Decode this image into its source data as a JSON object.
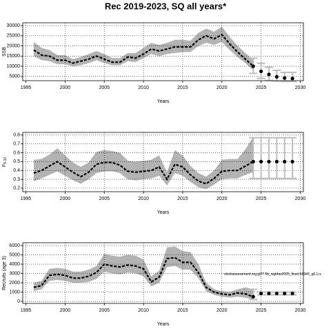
{
  "title": "Rec 2019-2023, SQ all years*",
  "chart_data": [
    {
      "type": "band-line",
      "y_label": "SSB",
      "x_label": "Years",
      "x": [
        1996,
        1997,
        1998,
        1999,
        2000,
        2001,
        2002,
        2003,
        2004,
        2005,
        2006,
        2007,
        2008,
        2009,
        2010,
        2011,
        2012,
        2013,
        2014,
        2015,
        2016,
        2017,
        2018,
        2019,
        2020,
        2021,
        2022,
        2023,
        2024
      ],
      "median": [
        18000,
        15500,
        15000,
        13000,
        13000,
        11500,
        12500,
        13500,
        15000,
        13500,
        12000,
        12000,
        14500,
        14000,
        16000,
        18500,
        17500,
        18500,
        19500,
        19500,
        19500,
        23000,
        25000,
        23500,
        25500,
        21000,
        17000,
        13500,
        10000
      ],
      "lower": [
        15000,
        13000,
        12500,
        11000,
        11000,
        10000,
        10500,
        11500,
        13000,
        11500,
        10500,
        10500,
        12500,
        12000,
        14000,
        16000,
        15000,
        16000,
        16500,
        17000,
        17000,
        20000,
        21500,
        20500,
        22000,
        18000,
        14500,
        11500,
        8000
      ],
      "upper": [
        22000,
        19000,
        18000,
        15500,
        15500,
        13500,
        14500,
        16000,
        17500,
        16000,
        14000,
        14000,
        16500,
        16500,
        19000,
        21500,
        20500,
        21500,
        23000,
        23000,
        22500,
        26500,
        28500,
        27000,
        29500,
        24500,
        20000,
        16500,
        13000
      ],
      "proj_x": [
        2024,
        2025,
        2026,
        2027,
        2028,
        2029
      ],
      "proj_values": [
        10000,
        7500,
        6000,
        4800,
        4200,
        4000
      ],
      "proj_lower": [
        6500,
        4000,
        3000,
        2700,
        2500,
        2500
      ],
      "proj_upper": [
        14000,
        11500,
        9500,
        8000,
        7000,
        7000
      ],
      "xlim": [
        1994.6,
        2030.4
      ],
      "xticks": [
        1995,
        2000,
        2005,
        2010,
        2015,
        2020,
        2025,
        2030
      ],
      "ylim": [
        2900,
        31400
      ],
      "yticks": [
        5000,
        10000,
        15000,
        20000,
        25000,
        30000
      ],
      "grid": true,
      "line_color": "#000000",
      "band_color": "#b3b3b3",
      "bar_color": "#bdbdbd"
    },
    {
      "type": "band-line",
      "y_label": "F",
      "y_label_subscript": "5-10",
      "x_label": "Years",
      "x": [
        1996,
        1997,
        1998,
        1999,
        2000,
        2001,
        2002,
        2003,
        2004,
        2005,
        2006,
        2007,
        2008,
        2009,
        2010,
        2011,
        2012,
        2013,
        2014,
        2015,
        2016,
        2017,
        2018,
        2019,
        2020,
        2021,
        2022,
        2023,
        2024
      ],
      "median": [
        0.37,
        0.4,
        0.45,
        0.5,
        0.44,
        0.38,
        0.33,
        0.38,
        0.47,
        0.49,
        0.49,
        0.46,
        0.39,
        0.38,
        0.39,
        0.4,
        0.44,
        0.3,
        0.47,
        0.44,
        0.35,
        0.28,
        0.25,
        0.31,
        0.39,
        0.4,
        0.4,
        0.45,
        0.5
      ],
      "lower": [
        0.28,
        0.31,
        0.35,
        0.39,
        0.34,
        0.29,
        0.25,
        0.3,
        0.37,
        0.39,
        0.39,
        0.37,
        0.3,
        0.29,
        0.3,
        0.31,
        0.34,
        0.23,
        0.37,
        0.34,
        0.27,
        0.21,
        0.19,
        0.24,
        0.3,
        0.31,
        0.31,
        0.35,
        0.38
      ],
      "upper": [
        0.52,
        0.53,
        0.58,
        0.65,
        0.57,
        0.49,
        0.44,
        0.49,
        0.61,
        0.63,
        0.62,
        0.6,
        0.51,
        0.5,
        0.51,
        0.52,
        0.57,
        0.38,
        0.63,
        0.57,
        0.45,
        0.37,
        0.33,
        0.4,
        0.52,
        0.53,
        0.53,
        0.64,
        0.78
      ],
      "proj_x": [
        2024,
        2025,
        2026,
        2027,
        2028,
        2029
      ],
      "proj_values": [
        0.5,
        0.5,
        0.5,
        0.5,
        0.5,
        0.5
      ],
      "proj_lower": [
        0.31,
        0.31,
        0.31,
        0.31,
        0.31,
        0.31
      ],
      "proj_upper": [
        0.77,
        0.77,
        0.77,
        0.77,
        0.77,
        0.77
      ],
      "xlim": [
        1994.6,
        2030.4
      ],
      "xticks": [
        1995,
        2000,
        2005,
        2010,
        2015,
        2020,
        2025,
        2030
      ],
      "ylim": [
        0.16,
        0.83
      ],
      "yticks": [
        0.2,
        0.3,
        0.4,
        0.5,
        0.6,
        0.7,
        0.8
      ],
      "grid": true,
      "line_color": "#000000",
      "band_color": "#b3b3b3",
      "bar_color": "#bdbdbd"
    },
    {
      "type": "band-line",
      "y_label": "Recruits (age 3)",
      "x_label": "Years",
      "annotation": "stockassessment.org,gt27.5b_wgbfas2025_final,r18949_g8.1cc",
      "x": [
        1996,
        1997,
        1998,
        1999,
        2000,
        2001,
        2002,
        2003,
        2004,
        2005,
        2006,
        2007,
        2008,
        2009,
        2010,
        2011,
        2012,
        2013,
        2014,
        2015,
        2016,
        2017,
        2018,
        2019,
        2020,
        2021,
        2022,
        2023,
        2024
      ],
      "median": [
        1500,
        1700,
        2800,
        2900,
        2800,
        2500,
        2500,
        2700,
        3100,
        4000,
        3800,
        3700,
        3900,
        3800,
        3500,
        2100,
        2600,
        4600,
        4700,
        4200,
        4200,
        3100,
        1500,
        1000,
        800,
        700,
        900,
        800,
        500
      ],
      "lower": [
        1100,
        1300,
        2200,
        2300,
        2200,
        2000,
        2000,
        2100,
        2400,
        3200,
        3000,
        2900,
        3100,
        3000,
        2700,
        1600,
        2000,
        3700,
        3800,
        3400,
        3400,
        2500,
        1100,
        700,
        500,
        400,
        500,
        400,
        200
      ],
      "upper": [
        2000,
        2200,
        3500,
        3600,
        3500,
        3200,
        3200,
        3400,
        3800,
        5100,
        4900,
        4800,
        5000,
        4900,
        4500,
        2700,
        3300,
        5800,
        5900,
        5400,
        5300,
        4000,
        2000,
        1300,
        1100,
        1000,
        1300,
        1500,
        1300
      ],
      "proj_x": [
        2024,
        2025,
        2026,
        2027,
        2028,
        2029
      ],
      "proj_values": [
        500,
        850,
        850,
        850,
        850,
        850
      ],
      "proj_lower": [
        200,
        700,
        700,
        700,
        700,
        700
      ],
      "proj_upper": [
        1300,
        1000,
        1000,
        1000,
        1000,
        1000
      ],
      "xlim": [
        1994.6,
        2030.4
      ],
      "xticks": [
        1995,
        2000,
        2005,
        2010,
        2015,
        2020,
        2025,
        2030
      ],
      "ylim": [
        -220,
        6300
      ],
      "yticks": [
        0,
        1000,
        2000,
        3000,
        4000,
        5000,
        6000
      ],
      "grid": true,
      "line_color": "#000000",
      "band_color": "#b3b3b3",
      "bar_color": "#bdbdbd"
    }
  ]
}
